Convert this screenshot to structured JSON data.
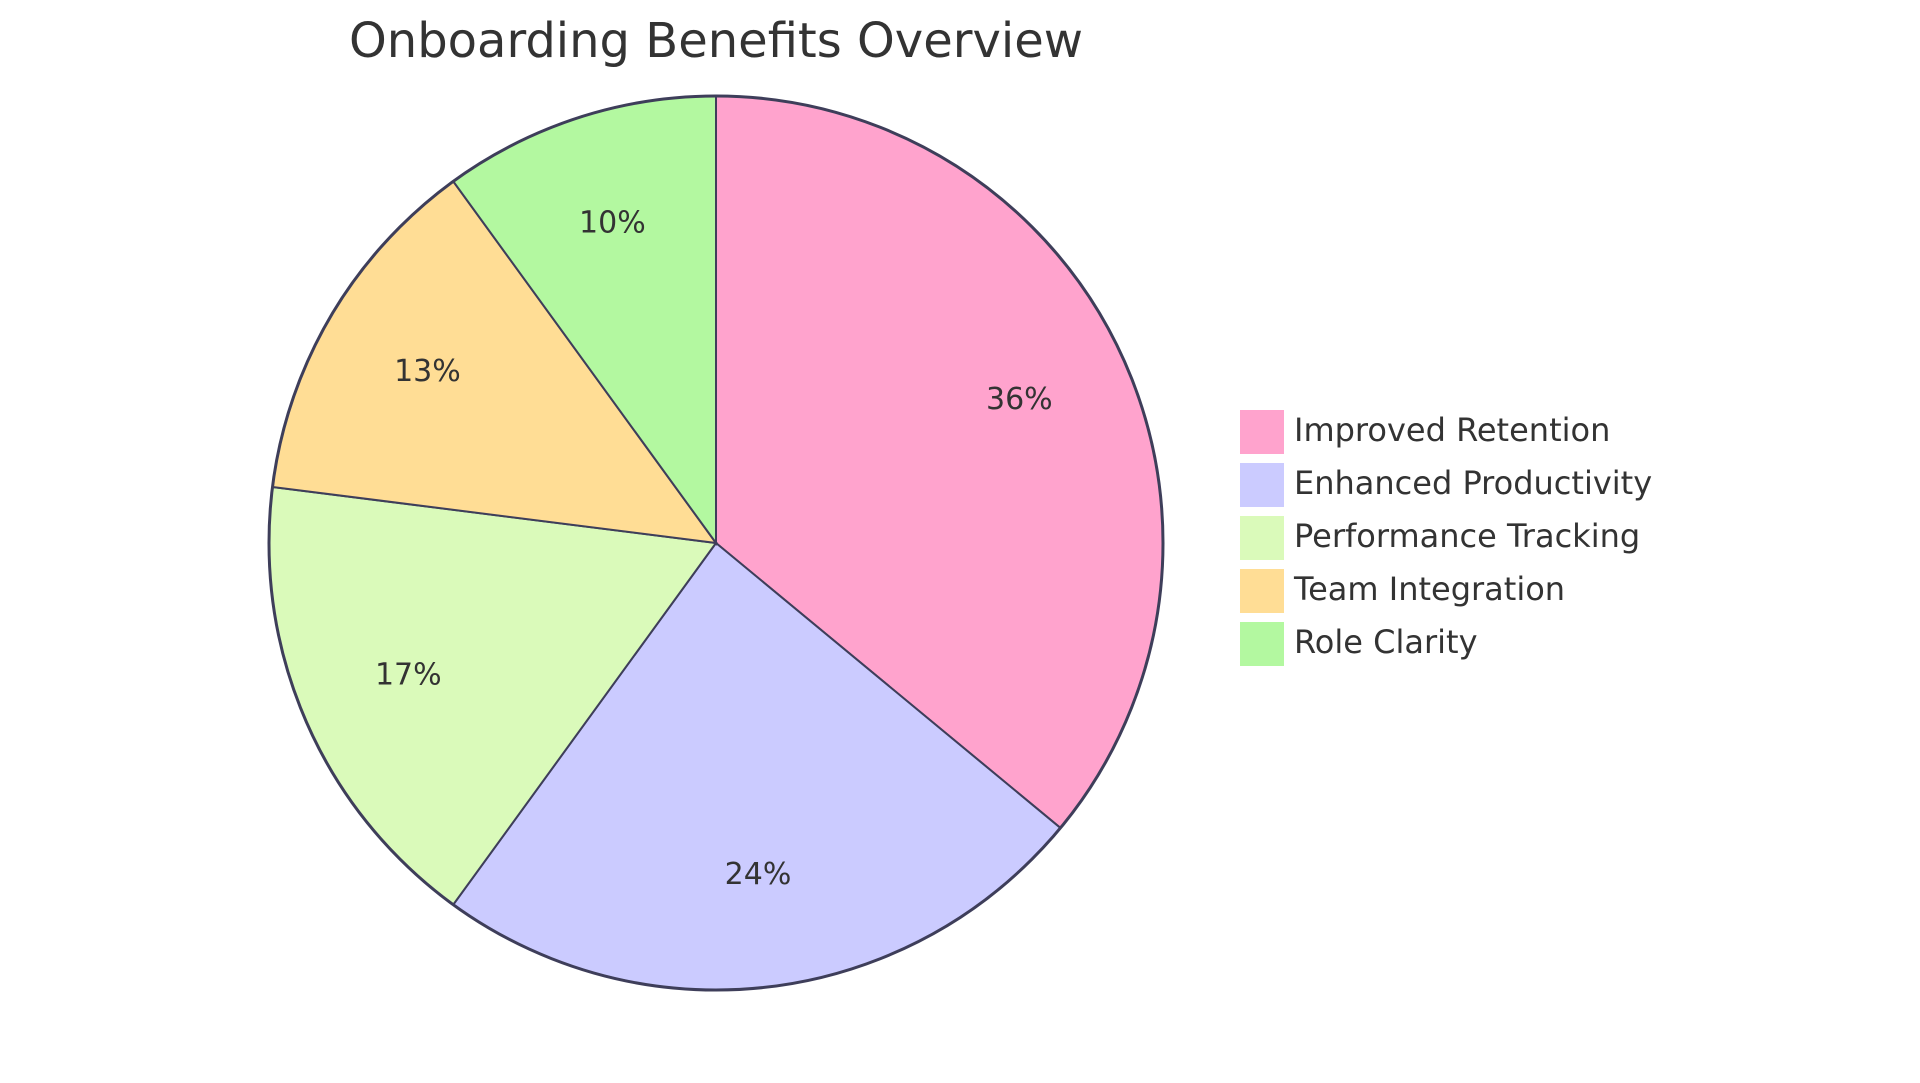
{
  "chart_data": {
    "type": "pie",
    "title": "Onboarding Benefits Overview",
    "slices": [
      {
        "label": "Improved Retention",
        "value": 36,
        "display": "36%",
        "color": "#FFA3CD"
      },
      {
        "label": "Enhanced Productivity",
        "value": 24,
        "display": "24%",
        "color": "#CBCBFF"
      },
      {
        "label": "Performance Tracking",
        "value": 17,
        "display": "17%",
        "color": "#DAFABA"
      },
      {
        "label": "Team Integration",
        "value": 13,
        "display": "13%",
        "color": "#FFDD95"
      },
      {
        "label": "Role Clarity",
        "value": 10,
        "display": "10%",
        "color": "#B3F8A0"
      }
    ],
    "start_angle": "12 o'clock",
    "direction": "clockwise",
    "legend_position": "right",
    "stroke_color": "#3E3E5A"
  }
}
